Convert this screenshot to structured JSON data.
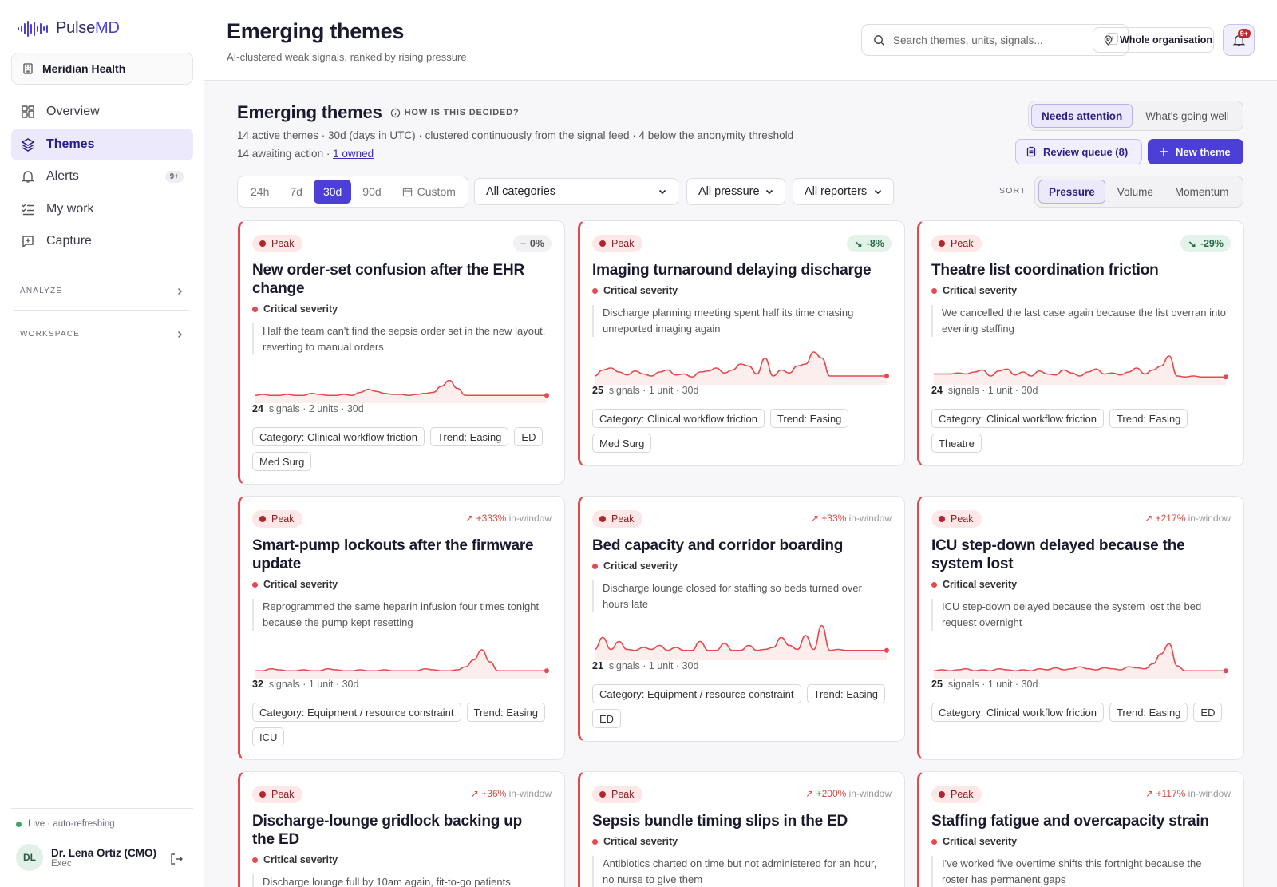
{
  "app": {
    "name_a": "Pulse",
    "name_b": "MD"
  },
  "org": {
    "label": "Meridian Health"
  },
  "nav": {
    "items": [
      {
        "label": "Overview",
        "icon": "grid-icon"
      },
      {
        "label": "Themes",
        "icon": "layers-icon"
      },
      {
        "label": "Alerts",
        "icon": "bell-icon",
        "badge": "9+"
      },
      {
        "label": "My work",
        "icon": "checklist-icon"
      },
      {
        "label": "Capture",
        "icon": "capture-icon"
      }
    ],
    "groups": [
      {
        "label": "ANALYZE"
      },
      {
        "label": "WORKSPACE"
      }
    ]
  },
  "status": {
    "live": "Live · auto-refreshing"
  },
  "user": {
    "initials": "DL",
    "name": "Dr. Lena Ortiz (CMO)",
    "role": "Exec"
  },
  "header": {
    "title": "Emerging themes",
    "subtitle": "AI-clustered weak signals, ranked by rising pressure",
    "search_placeholder": "Search themes, units, signals...",
    "search_key": "/",
    "scope": "Whole organisation",
    "bell_badge": "9+"
  },
  "section": {
    "title": "Emerging themes",
    "how": "HOW IS THIS DECIDED?",
    "meta1": "14 active themes · 30d (days in UTC) · clustered continuously from the signal feed · 4 below the anonymity threshold",
    "meta2_prefix": "14 awaiting action · ",
    "meta2_link": "1 owned"
  },
  "view_toggle": {
    "options": [
      "Needs attention",
      "What's going well"
    ],
    "selected": "Needs attention"
  },
  "actions": {
    "review": "Review queue (8)",
    "new": "New theme"
  },
  "filters": {
    "ranges": [
      "24h",
      "7d",
      "30d",
      "90d"
    ],
    "range_selected": "30d",
    "custom": "Custom",
    "category": "All categories",
    "pressure": "All pressure",
    "reporters": "All reporters"
  },
  "sort": {
    "label": "SORT",
    "options": [
      "Pressure",
      "Volume",
      "Momentum"
    ],
    "selected": "Pressure"
  },
  "colors": {
    "accent": "#4b3fd8",
    "critical": "#e5484d",
    "peak_bg": "#fde7e7",
    "easing_bg": "#e3f3ea"
  },
  "cards": [
    {
      "status": "Peak",
      "trend": "0%",
      "trend_kind": "neutral",
      "title": "New order-set confusion after the EHR change",
      "severity": "Critical severity",
      "quote": "Half the team can't find the sepsis order set in the new layout, reverting to manual orders",
      "signals": "24",
      "stats_rest": "signals · 2 units · 30d",
      "tags": [
        "Category: Clinical workflow friction",
        "Trend: Easing",
        "ED",
        "Med Surg"
      ],
      "spark": [
        3,
        4,
        3,
        3,
        4,
        3,
        3,
        5,
        4,
        3,
        3,
        4,
        3,
        6,
        9,
        7,
        5,
        4,
        4,
        3,
        4,
        5,
        6,
        12,
        18,
        10,
        3,
        3,
        3,
        3,
        3,
        3,
        3,
        3,
        3,
        3,
        3
      ]
    },
    {
      "status": "Peak",
      "trend": "-8%",
      "trend_kind": "down",
      "title": "Imaging turnaround delaying discharge",
      "severity": "Critical severity",
      "quote": "Discharge planning meeting spent half its time chasing unreported imaging again",
      "signals": "25",
      "stats_rest": "signals · 1 unit · 30d",
      "tags": [
        "Category: Clinical workflow friction",
        "Trend: Easing",
        "Med Surg"
      ],
      "spark": [
        4,
        10,
        12,
        8,
        5,
        9,
        6,
        4,
        8,
        10,
        5,
        6,
        3,
        8,
        9,
        12,
        7,
        10,
        16,
        14,
        6,
        22,
        4,
        10,
        7,
        14,
        16,
        28,
        22,
        4,
        4,
        4,
        4,
        4,
        4,
        4,
        4
      ]
    },
    {
      "status": "Peak",
      "trend": "-29%",
      "trend_kind": "down",
      "title": "Theatre list coordination friction",
      "severity": "Critical severity",
      "quote": "We cancelled the last case again because the list overran into evening staffing",
      "signals": "24",
      "stats_rest": "signals · 1 unit · 30d",
      "tags": [
        "Category: Clinical workflow friction",
        "Trend: Easing",
        "Theatre"
      ],
      "spark": [
        6,
        6,
        6,
        7,
        6,
        8,
        10,
        4,
        9,
        11,
        5,
        8,
        4,
        9,
        6,
        5,
        10,
        7,
        4,
        8,
        11,
        6,
        7,
        5,
        8,
        12,
        6,
        10,
        14,
        24,
        4,
        3,
        4,
        3,
        3,
        3,
        3
      ]
    },
    {
      "status": "Peak",
      "trend": "+333%",
      "trend_suffix": " in-window",
      "trend_kind": "up",
      "title": "Smart-pump lockouts after the firmware update",
      "severity": "Critical severity",
      "quote": "Reprogrammed the same heparin infusion four times tonight because the pump kept resetting",
      "signals": "32",
      "stats_rest": "signals · 1 unit · 30d",
      "tags": [
        "Category: Equipment / resource constraint",
        "Trend: Easing",
        "ICU"
      ],
      "spark": [
        3,
        3,
        5,
        4,
        3,
        3,
        4,
        3,
        3,
        5,
        4,
        3,
        3,
        4,
        3,
        3,
        4,
        3,
        3,
        3,
        3,
        5,
        4,
        3,
        3,
        4,
        7,
        14,
        24,
        12,
        3,
        3,
        3,
        3,
        3,
        3,
        3
      ]
    },
    {
      "status": "Peak",
      "trend": "+33%",
      "trend_suffix": " in-window",
      "trend_kind": "up",
      "title": "Bed capacity and corridor boarding",
      "severity": "Critical severity",
      "quote": "Discharge lounge closed for staffing so beds turned over hours late",
      "signals": "21",
      "stats_rest": "signals · 1 unit · 30d",
      "tags": [
        "Category: Equipment / resource constraint",
        "Trend: Easing",
        "ED"
      ],
      "spark": [
        6,
        18,
        6,
        14,
        6,
        5,
        8,
        6,
        10,
        5,
        8,
        5,
        5,
        14,
        5,
        5,
        12,
        5,
        5,
        10,
        5,
        6,
        8,
        18,
        10,
        6,
        20,
        6,
        30,
        5,
        6,
        5,
        5,
        5,
        5,
        5,
        5
      ]
    },
    {
      "status": "Peak",
      "trend": "+217%",
      "trend_suffix": " in-window",
      "trend_kind": "up",
      "title": "ICU step-down delayed because the system lost",
      "severity": "Critical severity",
      "quote": "ICU step-down delayed because the system lost the bed request overnight",
      "signals": "25",
      "stats_rest": "signals · 1 unit · 30d",
      "tags": [
        "Category: Clinical workflow friction",
        "Trend: Easing",
        "ED"
      ],
      "spark": [
        3,
        4,
        3,
        4,
        5,
        3,
        4,
        3,
        5,
        4,
        3,
        4,
        3,
        5,
        4,
        6,
        4,
        5,
        7,
        5,
        4,
        6,
        5,
        4,
        7,
        6,
        5,
        10,
        20,
        30,
        8,
        3,
        3,
        3,
        3,
        3,
        3
      ]
    },
    {
      "status": "Peak",
      "trend": "+36%",
      "trend_suffix": " in-window",
      "trend_kind": "up",
      "title": "Discharge-lounge gridlock backing up the ED",
      "severity": "Critical severity",
      "quote": "Discharge lounge full by 10am again, fit-to-go patients",
      "signals": "",
      "stats_rest": "",
      "tags": [],
      "spark": []
    },
    {
      "status": "Peak",
      "trend": "+200%",
      "trend_suffix": " in-window",
      "trend_kind": "up",
      "title": "Sepsis bundle timing slips in the ED",
      "severity": "Critical severity",
      "quote": "Antibiotics charted on time but not administered for an hour, no nurse to give them",
      "signals": "",
      "stats_rest": "",
      "tags": [],
      "spark": []
    },
    {
      "status": "Peak",
      "trend": "+117%",
      "trend_suffix": " in-window",
      "trend_kind": "up",
      "title": "Staffing fatigue and overcapacity strain",
      "severity": "Critical severity",
      "quote": "I've worked five overtime shifts this fortnight because the roster has permanent gaps",
      "signals": "",
      "stats_rest": "",
      "tags": [],
      "spark": []
    }
  ]
}
